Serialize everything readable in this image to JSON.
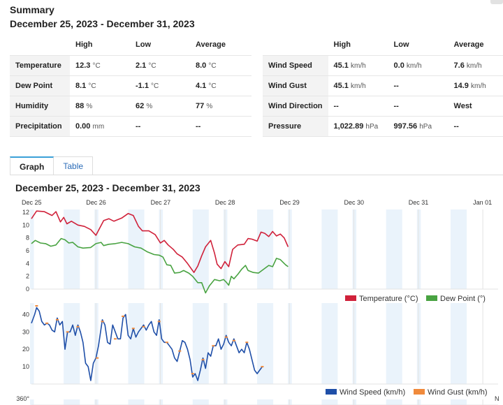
{
  "summary": {
    "title": "Summary",
    "range": "December 25, 2023 - December 31, 2023"
  },
  "table_left": {
    "headers": [
      "",
      "High",
      "Low",
      "Average"
    ],
    "rows": [
      {
        "label": "Temperature",
        "high": {
          "v": "12.3",
          "u": "°C"
        },
        "low": {
          "v": "2.1",
          "u": "°C"
        },
        "avg": {
          "v": "8.0",
          "u": "°C"
        }
      },
      {
        "label": "Dew Point",
        "high": {
          "v": "8.1",
          "u": "°C"
        },
        "low": {
          "v": "-1.1",
          "u": "°C"
        },
        "avg": {
          "v": "4.1",
          "u": "°C"
        }
      },
      {
        "label": "Humidity",
        "high": {
          "v": "88",
          "u": "%"
        },
        "low": {
          "v": "62",
          "u": "%"
        },
        "avg": {
          "v": "77",
          "u": "%"
        }
      },
      {
        "label": "Precipitation",
        "high": {
          "v": "0.00",
          "u": "mm"
        },
        "low": {
          "v": "--",
          "u": ""
        },
        "avg": {
          "v": "--",
          "u": ""
        }
      }
    ]
  },
  "table_right": {
    "headers": [
      "",
      "High",
      "Low",
      "Average"
    ],
    "rows": [
      {
        "label": "Wind Speed",
        "high": {
          "v": "45.1",
          "u": "km/h"
        },
        "low": {
          "v": "0.0",
          "u": "km/h"
        },
        "avg": {
          "v": "7.6",
          "u": "km/h"
        }
      },
      {
        "label": "Wind Gust",
        "high": {
          "v": "45.1",
          "u": "km/h"
        },
        "low": {
          "v": "--",
          "u": ""
        },
        "avg": {
          "v": "14.9",
          "u": "km/h"
        }
      },
      {
        "label": "Wind Direction",
        "high": {
          "v": "--",
          "u": ""
        },
        "low": {
          "v": "--",
          "u": ""
        },
        "avg": {
          "v": "West",
          "u": ""
        }
      },
      {
        "label": "Pressure",
        "high": {
          "v": "1,022.89",
          "u": "hPa"
        },
        "low": {
          "v": "997.56",
          "u": "hPa"
        },
        "avg": {
          "v": "--",
          "u": ""
        }
      }
    ]
  },
  "tabs": [
    {
      "label": "Graph",
      "active": true
    },
    {
      "label": "Table",
      "active": false
    }
  ],
  "graph_title": "December 25, 2023 - December 31, 2023",
  "chart_data": [
    {
      "type": "line",
      "x_ticks": [
        "Dec 25",
        "Dec 26",
        "Dec 27",
        "Dec 28",
        "Dec 29",
        "Dec 30",
        "Dec 31",
        "Jan 01"
      ],
      "x_range_days": [
        0,
        7
      ],
      "ylim": [
        0,
        12
      ],
      "y_ticks": [
        0,
        2,
        4,
        6,
        8,
        10,
        12
      ],
      "legend_position": "bottom-right",
      "series": [
        {
          "name": "Temperature (°C)",
          "color": "#d0213a",
          "points": [
            [
              0,
              11
            ],
            [
              0.08,
              12.2
            ],
            [
              0.2,
              12.1
            ],
            [
              0.32,
              11.5
            ],
            [
              0.38,
              12.1
            ],
            [
              0.45,
              10.5
            ],
            [
              0.5,
              11.2
            ],
            [
              0.55,
              10.2
            ],
            [
              0.62,
              10.6
            ],
            [
              0.72,
              10
            ],
            [
              0.82,
              9.8
            ],
            [
              0.92,
              9.3
            ],
            [
              1.0,
              8.4
            ],
            [
              1.12,
              10.7
            ],
            [
              1.2,
              11
            ],
            [
              1.28,
              10.6
            ],
            [
              1.4,
              11.1
            ],
            [
              1.5,
              11.8
            ],
            [
              1.58,
              11.5
            ],
            [
              1.66,
              9.8
            ],
            [
              1.72,
              9.1
            ],
            [
              1.82,
              9.1
            ],
            [
              1.92,
              8.5
            ],
            [
              2.0,
              7.2
            ],
            [
              2.06,
              7.6
            ],
            [
              2.12,
              6.9
            ],
            [
              2.2,
              6.2
            ],
            [
              2.26,
              5.5
            ],
            [
              2.34,
              5
            ],
            [
              2.42,
              4
            ],
            [
              2.52,
              2.6
            ],
            [
              2.58,
              3.6
            ],
            [
              2.64,
              5.2
            ],
            [
              2.7,
              6.6
            ],
            [
              2.78,
              7.6
            ],
            [
              2.84,
              5.6
            ],
            [
              2.88,
              3.9
            ],
            [
              2.94,
              3.2
            ],
            [
              3.0,
              4.3
            ],
            [
              3.06,
              3.5
            ],
            [
              3.12,
              6.2
            ],
            [
              3.2,
              6.9
            ],
            [
              3.3,
              7
            ],
            [
              3.36,
              7.9
            ],
            [
              3.42,
              7.8
            ],
            [
              3.5,
              7.5
            ],
            [
              3.56,
              8.9
            ],
            [
              3.62,
              8.7
            ],
            [
              3.68,
              8.2
            ],
            [
              3.74,
              9
            ],
            [
              3.8,
              8.3
            ],
            [
              3.86,
              8.6
            ],
            [
              3.92,
              8
            ],
            [
              3.98,
              6.6
            ]
          ]
        },
        {
          "name": "Dew Point (°)",
          "color": "#49a342",
          "points": [
            [
              0,
              7.1
            ],
            [
              0.06,
              7.6
            ],
            [
              0.14,
              7.2
            ],
            [
              0.22,
              7.1
            ],
            [
              0.3,
              6.7
            ],
            [
              0.38,
              6.9
            ],
            [
              0.46,
              7.9
            ],
            [
              0.52,
              7.7
            ],
            [
              0.58,
              7.2
            ],
            [
              0.64,
              7.3
            ],
            [
              0.72,
              6.6
            ],
            [
              0.8,
              6.4
            ],
            [
              0.92,
              6.5
            ],
            [
              1.0,
              7.1
            ],
            [
              1.08,
              7.3
            ],
            [
              1.12,
              6.8
            ],
            [
              1.2,
              7
            ],
            [
              1.3,
              7.1
            ],
            [
              1.4,
              7.3
            ],
            [
              1.5,
              7.1
            ],
            [
              1.6,
              6.6
            ],
            [
              1.7,
              6.4
            ],
            [
              1.8,
              5.8
            ],
            [
              1.9,
              5.4
            ],
            [
              1.98,
              5.3
            ],
            [
              2.04,
              5
            ],
            [
              2.1,
              3.8
            ],
            [
              2.16,
              3.7
            ],
            [
              2.22,
              2.5
            ],
            [
              2.3,
              2.6
            ],
            [
              2.36,
              2.9
            ],
            [
              2.44,
              2.5
            ],
            [
              2.5,
              2
            ],
            [
              2.58,
              1
            ],
            [
              2.64,
              1
            ],
            [
              2.7,
              -0.6
            ],
            [
              2.76,
              0.5
            ],
            [
              2.84,
              1.5
            ],
            [
              2.92,
              1.3
            ],
            [
              2.98,
              1.5
            ],
            [
              3.02,
              1.1
            ],
            [
              3.06,
              0.6
            ],
            [
              3.1,
              2
            ],
            [
              3.14,
              1.6
            ],
            [
              3.2,
              2.3
            ],
            [
              3.26,
              3.1
            ],
            [
              3.32,
              3.7
            ],
            [
              3.36,
              2.9
            ],
            [
              3.44,
              2.6
            ],
            [
              3.52,
              2.5
            ],
            [
              3.6,
              3.1
            ],
            [
              3.68,
              3.7
            ],
            [
              3.74,
              3.5
            ],
            [
              3.8,
              4.8
            ],
            [
              3.86,
              4.6
            ],
            [
              3.94,
              3.8
            ],
            [
              3.98,
              3.5
            ]
          ]
        }
      ]
    },
    {
      "type": "line",
      "x_ticks": [
        "Dec 25",
        "Dec 26",
        "Dec 27",
        "Dec 28",
        "Dec 29",
        "Dec 30",
        "Dec 31",
        "Jan 01"
      ],
      "x_range_days": [
        0,
        7
      ],
      "ylim": [
        0,
        45
      ],
      "y_ticks": [
        10,
        20,
        30,
        40
      ],
      "legend_position": "bottom-right",
      "series": [
        {
          "name": "Wind Speed (km/h)",
          "color": "#1f4fa8",
          "points": [
            [
              0,
              35
            ],
            [
              0.05,
              40
            ],
            [
              0.08,
              44
            ],
            [
              0.12,
              42
            ],
            [
              0.16,
              36
            ],
            [
              0.2,
              34
            ],
            [
              0.24,
              35
            ],
            [
              0.28,
              34
            ],
            [
              0.32,
              31
            ],
            [
              0.36,
              30
            ],
            [
              0.4,
              38
            ],
            [
              0.44,
              34
            ],
            [
              0.48,
              36
            ],
            [
              0.52,
              20
            ],
            [
              0.56,
              30
            ],
            [
              0.6,
              30
            ],
            [
              0.64,
              34
            ],
            [
              0.68,
              28
            ],
            [
              0.72,
              34
            ],
            [
              0.76,
              30
            ],
            [
              0.8,
              24
            ],
            [
              0.84,
              12
            ],
            [
              0.88,
              10
            ],
            [
              0.92,
              2
            ],
            [
              0.96,
              12
            ],
            [
              1.0,
              15
            ],
            [
              1.04,
              22
            ],
            [
              1.1,
              37
            ],
            [
              1.14,
              34
            ],
            [
              1.18,
              24
            ],
            [
              1.22,
              23
            ],
            [
              1.26,
              34
            ],
            [
              1.3,
              30
            ],
            [
              1.34,
              26
            ],
            [
              1.38,
              26
            ],
            [
              1.42,
              38
            ],
            [
              1.46,
              40
            ],
            [
              1.5,
              28
            ],
            [
              1.54,
              26
            ],
            [
              1.58,
              32
            ],
            [
              1.62,
              27
            ],
            [
              1.66,
              30
            ],
            [
              1.7,
              32
            ],
            [
              1.74,
              34
            ],
            [
              1.78,
              31
            ],
            [
              1.82,
              34
            ],
            [
              1.86,
              36
            ],
            [
              1.9,
              30
            ],
            [
              1.94,
              28
            ],
            [
              1.98,
              37
            ],
            [
              2.02,
              26
            ],
            [
              2.06,
              24
            ],
            [
              2.1,
              24
            ],
            [
              2.14,
              22
            ],
            [
              2.18,
              20
            ],
            [
              2.22,
              15
            ],
            [
              2.26,
              13
            ],
            [
              2.3,
              19
            ],
            [
              2.34,
              25
            ],
            [
              2.38,
              24
            ],
            [
              2.42,
              20
            ],
            [
              2.46,
              14
            ],
            [
              2.5,
              4
            ],
            [
              2.54,
              6
            ],
            [
              2.58,
              2
            ],
            [
              2.62,
              8
            ],
            [
              2.66,
              15
            ],
            [
              2.7,
              9
            ],
            [
              2.74,
              18
            ],
            [
              2.78,
              16
            ],
            [
              2.82,
              22
            ],
            [
              2.86,
              22
            ],
            [
              2.9,
              26
            ],
            [
              2.94,
              20
            ],
            [
              2.98,
              23
            ],
            [
              3.02,
              28
            ],
            [
              3.06,
              24
            ],
            [
              3.1,
              22
            ],
            [
              3.14,
              26
            ],
            [
              3.18,
              22
            ],
            [
              3.22,
              18
            ],
            [
              3.26,
              20
            ],
            [
              3.3,
              18
            ],
            [
              3.34,
              24
            ],
            [
              3.38,
              20
            ],
            [
              3.42,
              14
            ],
            [
              3.46,
              8
            ],
            [
              3.5,
              6
            ],
            [
              3.54,
              8
            ],
            [
              3.58,
              10
            ]
          ]
        },
        {
          "name": "Wind Gust (km/h)",
          "color": "#f08a3c",
          "points": [
            [
              0.08,
              45
            ],
            [
              0.24,
              35
            ],
            [
              0.4,
              37
            ],
            [
              0.56,
              30
            ],
            [
              0.72,
              33
            ],
            [
              1.02,
              15
            ],
            [
              1.1,
              36
            ],
            [
              1.3,
              26
            ],
            [
              1.42,
              39
            ],
            [
              1.58,
              32
            ],
            [
              1.74,
              33
            ],
            [
              1.98,
              36
            ],
            [
              2.1,
              24
            ],
            [
              2.3,
              19
            ],
            [
              2.5,
              6
            ],
            [
              2.66,
              14
            ],
            [
              2.82,
              22
            ],
            [
              3.02,
              27
            ],
            [
              3.14,
              25
            ],
            [
              3.34,
              24
            ],
            [
              3.58,
              10
            ]
          ]
        }
      ]
    },
    {
      "type": "line",
      "x_ticks": [
        "Dec 25",
        "Dec 26",
        "Dec 27",
        "Dec 28",
        "Dec 29",
        "Dec 30",
        "Dec 31",
        "Jan 01"
      ],
      "y_ticks_visible": [
        "360°"
      ],
      "right_label": "N"
    }
  ]
}
